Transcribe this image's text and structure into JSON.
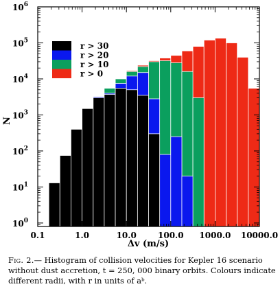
{
  "chart_data": {
    "type": "bar",
    "subtype": "stacked-histogram",
    "xlabel": "Δv (m/s)",
    "ylabel": "N",
    "xscale": "log",
    "yscale": "log",
    "xlim": [
      0.1,
      10000.0
    ],
    "ylim": [
      0.8,
      1000000
    ],
    "x_tick_labels": [
      "0.1",
      "1.0",
      "10.0",
      "100.0",
      "1000.0",
      "10000.0"
    ],
    "y_tick_labels": [
      {
        "base": "10",
        "exp": "0"
      },
      {
        "base": "10",
        "exp": "1"
      },
      {
        "base": "10",
        "exp": "2"
      },
      {
        "base": "10",
        "exp": "3"
      },
      {
        "base": "10",
        "exp": "4"
      },
      {
        "base": "10",
        "exp": "5"
      },
      {
        "base": "10",
        "exp": "6"
      }
    ],
    "legend_position": "top-left",
    "bin_edges": [
      0.178,
      0.316,
      0.562,
      1.0,
      1.78,
      3.16,
      5.62,
      10.0,
      17.8,
      31.6,
      56.2,
      100.0,
      178,
      316,
      562,
      1000,
      1780,
      3160,
      5620,
      10000
    ],
    "series": [
      {
        "name": "r > 0",
        "color": "#ee2a16",
        "values": [
          13,
          75,
          400,
          1500,
          3200,
          5500,
          10000,
          17000,
          24000,
          32000,
          38000,
          45000,
          60000,
          80000,
          120000,
          135000,
          100000,
          40000,
          5500
        ]
      },
      {
        "name": "r > 10",
        "color": "#0b9f5e",
        "values": [
          13,
          75,
          400,
          1500,
          3200,
          5500,
          10000,
          16000,
          22000,
          30000,
          32000,
          28000,
          16000,
          3000,
          0,
          0,
          0,
          0,
          0
        ]
      },
      {
        "name": "r > 20",
        "color": "#0a18ee",
        "values": [
          13,
          75,
          400,
          1500,
          3200,
          4000,
          7500,
          12000,
          15000,
          2800,
          80,
          250,
          20,
          0,
          0,
          0,
          0,
          0,
          0
        ]
      },
      {
        "name": "r > 30",
        "color": "#000000",
        "values": [
          13,
          75,
          400,
          1500,
          3000,
          3700,
          5500,
          5000,
          3500,
          300,
          0,
          0,
          0,
          0,
          0,
          0,
          0,
          0,
          0
        ]
      }
    ],
    "legend_order": [
      "r > 30",
      "r > 20",
      "r > 10",
      "r > 0"
    ]
  },
  "caption": {
    "label": "Fig. 2.",
    "text": "— Histogram of collision velocities for Kepler 16 scenario without dust accretion, t = 250, 000 binary orbits. Colours indicate different radii, with r in units of aᵇ."
  }
}
